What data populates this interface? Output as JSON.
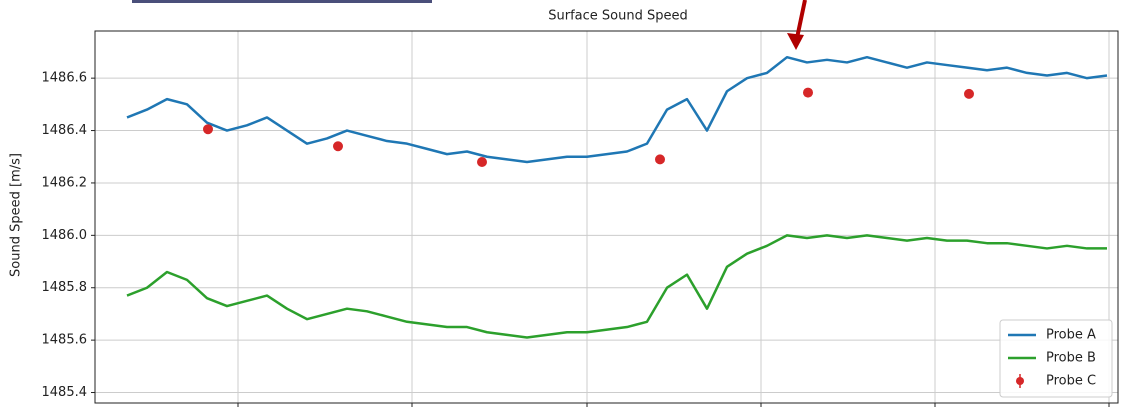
{
  "chart_data": {
    "type": "line",
    "title": "Surface Sound Speed",
    "ylabel": "Sound Speed [m/s]",
    "xlim": [
      0,
      1023
    ],
    "xticks": [
      143,
      317,
      492,
      666,
      840,
      1014
    ],
    "ylim": [
      1485.36,
      1486.78
    ],
    "yticks": [
      1485.4,
      1485.6,
      1485.8,
      {
        "value": 1486.0,
        "label": "1486.0"
      },
      1486.2,
      1486.4,
      1486.6
    ],
    "grid": true,
    "legend": "lower right",
    "x": [
      32,
      52,
      72,
      92,
      112,
      132,
      152,
      172,
      192,
      212,
      232,
      252,
      272,
      292,
      312,
      332,
      352,
      372,
      392,
      412,
      432,
      452,
      472,
      492,
      512,
      532,
      552,
      572,
      592,
      612,
      632,
      652,
      672,
      692,
      712,
      732,
      752,
      772,
      792,
      812,
      832,
      852,
      872,
      892,
      912,
      932,
      952,
      972,
      992,
      1012
    ],
    "series": [
      {
        "name": "Probe A",
        "color": "#1f77b4",
        "values": [
          1486.45,
          1486.48,
          1486.52,
          1486.5,
          1486.43,
          1486.4,
          1486.42,
          1486.45,
          1486.4,
          1486.35,
          1486.37,
          1486.4,
          1486.38,
          1486.36,
          1486.35,
          1486.33,
          1486.31,
          1486.32,
          1486.3,
          1486.29,
          1486.28,
          1486.29,
          1486.3,
          1486.3,
          1486.31,
          1486.32,
          1486.35,
          1486.48,
          1486.52,
          1486.4,
          1486.55,
          1486.6,
          1486.62,
          1486.68,
          1486.66,
          1486.67,
          1486.66,
          1486.68,
          1486.66,
          1486.64,
          1486.66,
          1486.65,
          1486.64,
          1486.63,
          1486.64,
          1486.62,
          1486.61,
          1486.62,
          1486.6,
          1486.61
        ]
      },
      {
        "name": "Probe B",
        "color": "#2ca02c",
        "values": [
          1485.77,
          1485.8,
          1485.86,
          1485.83,
          1485.76,
          1485.73,
          1485.75,
          1485.77,
          1485.72,
          1485.68,
          1485.7,
          1485.72,
          1485.71,
          1485.69,
          1485.67,
          1485.66,
          1485.65,
          1485.65,
          1485.63,
          1485.62,
          1485.61,
          1485.62,
          1485.63,
          1485.63,
          1485.64,
          1485.65,
          1485.67,
          1485.8,
          1485.85,
          1485.72,
          1485.88,
          1485.93,
          1485.96,
          1486.0,
          1485.99,
          1486.0,
          1485.99,
          1486.0,
          1485.99,
          1485.98,
          1485.99,
          1485.98,
          1485.98,
          1485.97,
          1485.97,
          1485.96,
          1485.95,
          1485.96,
          1485.95,
          1485.95
        ]
      },
      {
        "name": "Probe C",
        "color": "#d62728",
        "type": "scatter",
        "x": [
          113,
          243,
          387,
          565,
          713,
          874
        ],
        "values": [
          1486.405,
          1486.34,
          1486.28,
          1486.29,
          1486.545,
          1486.54
        ]
      }
    ]
  }
}
